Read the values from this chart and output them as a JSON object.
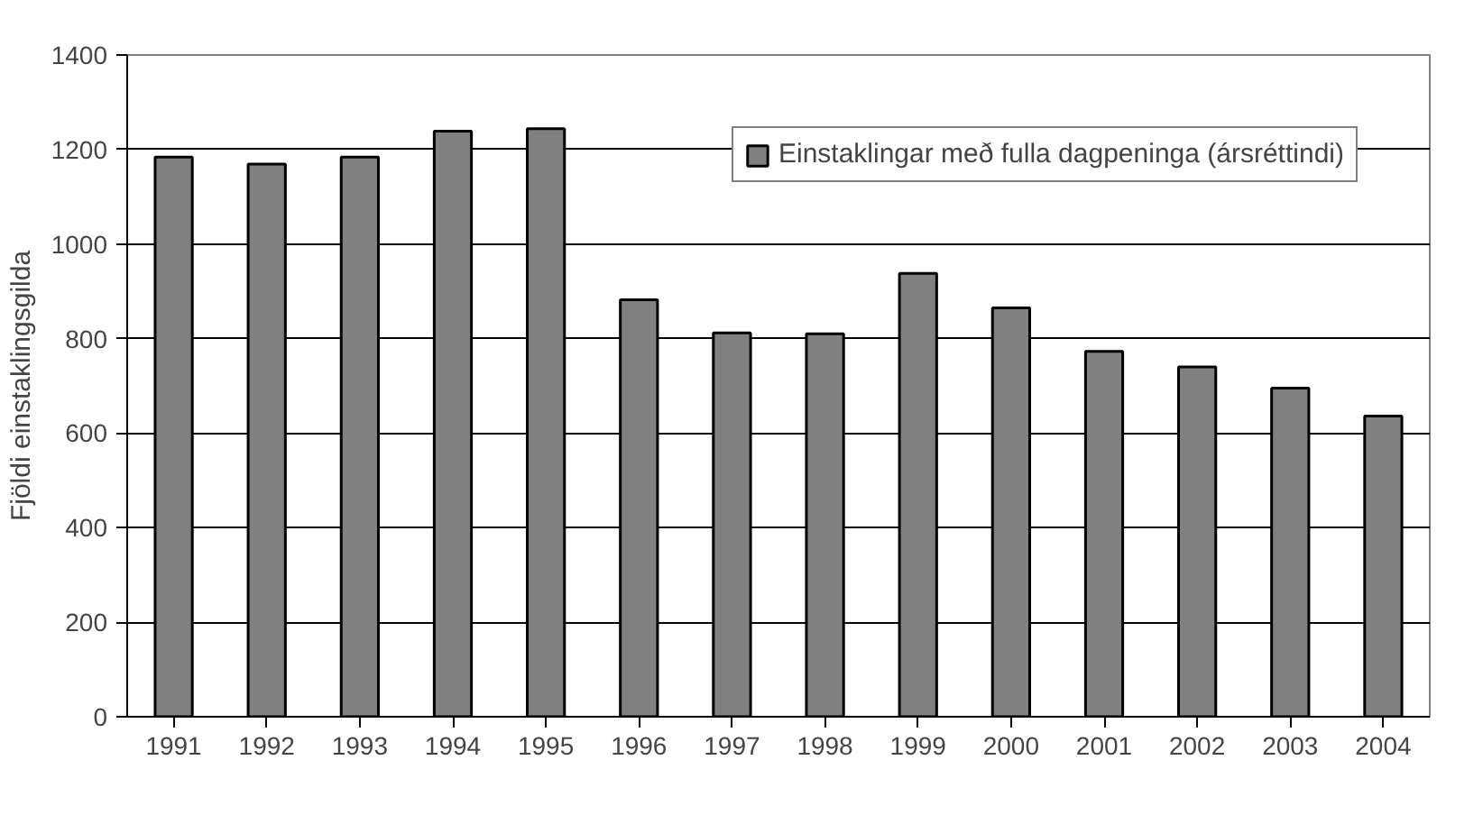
{
  "chart_data": {
    "type": "bar",
    "ylabel": "Fjöldi einstaklingsgilda",
    "categories": [
      "1991",
      "1992",
      "1993",
      "1994",
      "1995",
      "1996",
      "1997",
      "1998",
      "1999",
      "2000",
      "2001",
      "2002",
      "2003",
      "2004"
    ],
    "series": [
      {
        "name": "Einstaklingar með fulla dagpeninga (ársréttindi)",
        "color": "#808080",
        "values": [
          1184,
          1169,
          1184,
          1239,
          1244,
          882,
          812,
          810,
          938,
          865,
          773,
          740,
          695,
          636
        ]
      }
    ],
    "ylim": [
      0,
      1400
    ],
    "yticks": [
      0,
      200,
      400,
      600,
      800,
      1000,
      1200,
      1400
    ],
    "grid": "y",
    "legend": "top right"
  }
}
